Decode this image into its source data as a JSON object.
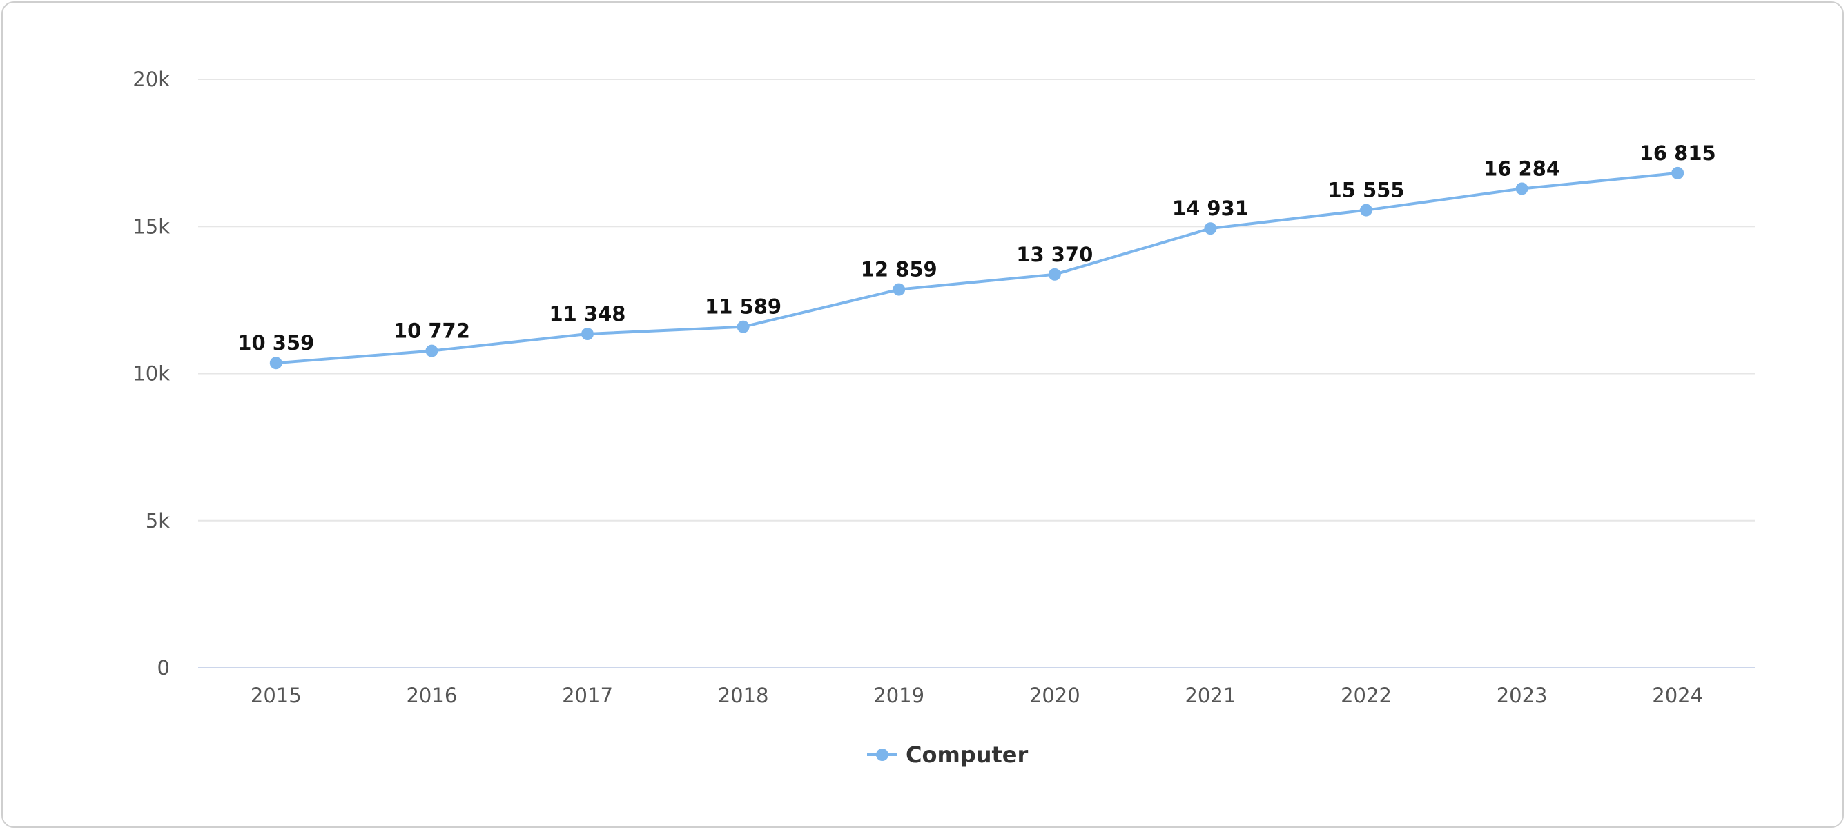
{
  "chart_data": {
    "type": "line",
    "title": "",
    "xlabel": "",
    "ylabel": "",
    "categories": [
      "2015",
      "2016",
      "2017",
      "2018",
      "2019",
      "2020",
      "2021",
      "2022",
      "2023",
      "2024"
    ],
    "series": [
      {
        "name": "Computer",
        "values": [
          10359,
          10772,
          11348,
          11589,
          12859,
          13370,
          14931,
          15555,
          16284,
          16815
        ],
        "value_labels": [
          "10 359",
          "10 772",
          "11 348",
          "11 589",
          "12 859",
          "13 370",
          "14 931",
          "15 555",
          "16 284",
          "16 815"
        ],
        "color": "#7cb5ec"
      }
    ],
    "ylim": [
      0,
      20000
    ],
    "yticks": [
      0,
      5000,
      10000,
      15000,
      20000
    ],
    "ytick_labels": [
      "0",
      "5k",
      "10k",
      "15k",
      "20k"
    ],
    "grid": true,
    "legend": "bottom-center",
    "gridline_color": "#e6e6e6",
    "axis_color": "#ccd6eb"
  }
}
